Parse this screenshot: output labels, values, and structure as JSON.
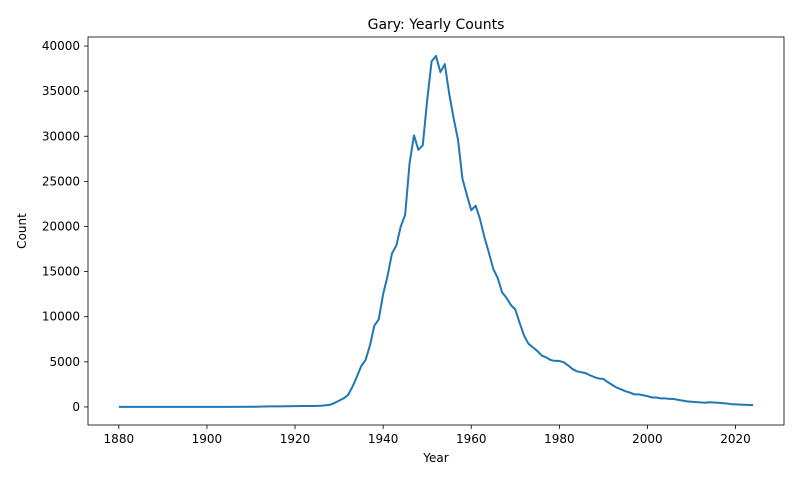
{
  "chart_data": {
    "type": "line",
    "title": "Gary: Yearly Counts",
    "xlabel": "Year",
    "ylabel": "Count",
    "xlim": [
      1873,
      2031
    ],
    "ylim": [
      -2000,
      41000
    ],
    "x_ticks": [
      1880,
      1900,
      1920,
      1940,
      1960,
      1980,
      2000,
      2020
    ],
    "y_ticks": [
      0,
      5000,
      10000,
      15000,
      20000,
      25000,
      30000,
      35000,
      40000
    ],
    "grid": false,
    "series": [
      {
        "color": "#1f77b4",
        "points": [
          [
            1880,
            5
          ],
          [
            1885,
            5
          ],
          [
            1890,
            5
          ],
          [
            1895,
            5
          ],
          [
            1900,
            8
          ],
          [
            1905,
            10
          ],
          [
            1910,
            20
          ],
          [
            1912,
            40
          ],
          [
            1914,
            60
          ],
          [
            1916,
            70
          ],
          [
            1918,
            80
          ],
          [
            1920,
            90
          ],
          [
            1922,
            100
          ],
          [
            1924,
            110
          ],
          [
            1926,
            130
          ],
          [
            1928,
            250
          ],
          [
            1929,
            450
          ],
          [
            1930,
            700
          ],
          [
            1931,
            950
          ],
          [
            1932,
            1300
          ],
          [
            1933,
            2200
          ],
          [
            1934,
            3300
          ],
          [
            1935,
            4500
          ],
          [
            1936,
            5200
          ],
          [
            1937,
            6800
          ],
          [
            1938,
            9000
          ],
          [
            1939,
            9700
          ],
          [
            1940,
            12500
          ],
          [
            1941,
            14500
          ],
          [
            1942,
            17000
          ],
          [
            1943,
            17900
          ],
          [
            1944,
            20000
          ],
          [
            1945,
            21300
          ],
          [
            1946,
            27000
          ],
          [
            1947,
            30100
          ],
          [
            1948,
            28500
          ],
          [
            1949,
            29000
          ],
          [
            1950,
            34000
          ],
          [
            1951,
            38300
          ],
          [
            1952,
            38900
          ],
          [
            1953,
            37100
          ],
          [
            1954,
            38000
          ],
          [
            1955,
            34700
          ],
          [
            1956,
            32000
          ],
          [
            1957,
            29600
          ],
          [
            1958,
            25300
          ],
          [
            1959,
            23500
          ],
          [
            1960,
            21800
          ],
          [
            1961,
            22300
          ],
          [
            1962,
            20800
          ],
          [
            1963,
            18800
          ],
          [
            1964,
            17100
          ],
          [
            1965,
            15300
          ],
          [
            1966,
            14300
          ],
          [
            1967,
            12700
          ],
          [
            1968,
            12100
          ],
          [
            1969,
            11300
          ],
          [
            1970,
            10800
          ],
          [
            1971,
            9300
          ],
          [
            1972,
            7900
          ],
          [
            1973,
            7000
          ],
          [
            1974,
            6600
          ],
          [
            1975,
            6200
          ],
          [
            1976,
            5700
          ],
          [
            1977,
            5500
          ],
          [
            1978,
            5200
          ],
          [
            1979,
            5100
          ],
          [
            1980,
            5100
          ],
          [
            1981,
            4950
          ],
          [
            1982,
            4600
          ],
          [
            1983,
            4200
          ],
          [
            1984,
            3950
          ],
          [
            1985,
            3850
          ],
          [
            1986,
            3750
          ],
          [
            1987,
            3500
          ],
          [
            1988,
            3300
          ],
          [
            1989,
            3150
          ],
          [
            1990,
            3100
          ],
          [
            1991,
            2750
          ],
          [
            1992,
            2450
          ],
          [
            1993,
            2150
          ],
          [
            1994,
            1950
          ],
          [
            1995,
            1750
          ],
          [
            1996,
            1600
          ],
          [
            1997,
            1400
          ],
          [
            1998,
            1400
          ],
          [
            1999,
            1300
          ],
          [
            2000,
            1200
          ],
          [
            2001,
            1050
          ],
          [
            2002,
            1050
          ],
          [
            2003,
            950
          ],
          [
            2004,
            950
          ],
          [
            2005,
            900
          ],
          [
            2006,
            880
          ],
          [
            2007,
            780
          ],
          [
            2008,
            700
          ],
          [
            2009,
            620
          ],
          [
            2010,
            580
          ],
          [
            2011,
            540
          ],
          [
            2012,
            510
          ],
          [
            2013,
            470
          ],
          [
            2014,
            520
          ],
          [
            2015,
            500
          ],
          [
            2016,
            470
          ],
          [
            2017,
            430
          ],
          [
            2018,
            380
          ],
          [
            2019,
            320
          ],
          [
            2020,
            290
          ],
          [
            2021,
            260
          ],
          [
            2022,
            240
          ],
          [
            2023,
            220
          ],
          [
            2024,
            200
          ]
        ]
      }
    ]
  }
}
